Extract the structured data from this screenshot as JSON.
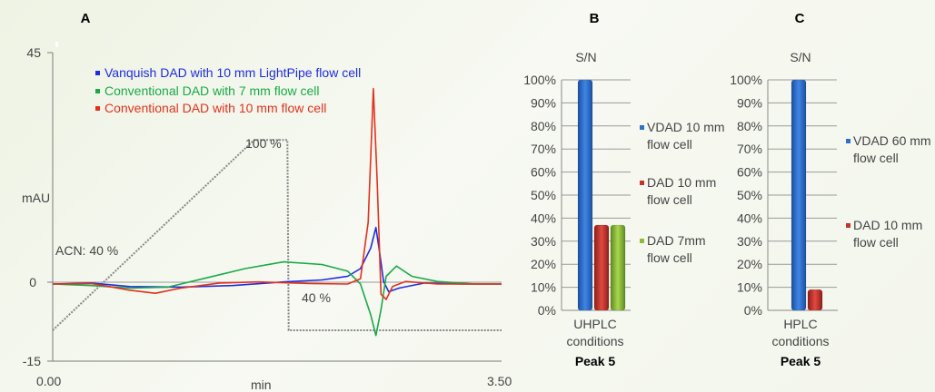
{
  "panels": {
    "a": "A",
    "b": "B",
    "c": "C"
  },
  "chart_data": [
    {
      "type": "line",
      "y_tick_labels": [
        "45",
        "0",
        "-15"
      ],
      "ylim": [
        -15,
        45
      ],
      "x_tick_labels": [
        "0.00",
        "3.50"
      ],
      "xlim": [
        0,
        3.5
      ],
      "xlabel": "min",
      "ylabel": "mAU",
      "legend_position": "top-left",
      "annotations": {
        "acn_start": "ACN: 40 %",
        "plateau": "100 %",
        "end": "40 %"
      },
      "gradient": {
        "name": "ACN gradient",
        "color": "#888888",
        "x": [
          0.0,
          1.57,
          1.83,
          1.84,
          3.5
        ],
        "y": [
          -9,
          28,
          28,
          -9,
          -9
        ]
      },
      "series": [
        {
          "name": "Vanquish DAD with 10 mm LightPipe flow cell",
          "color": "#1f2ce0",
          "x": [
            0,
            0.3,
            0.6,
            1.0,
            1.4,
            1.8,
            2.1,
            2.3,
            2.4,
            2.48,
            2.52,
            2.55,
            2.58,
            2.62,
            2.7,
            2.9,
            3.2,
            3.5
          ],
          "y": [
            0,
            0.2,
            -0.5,
            -0.6,
            -0.3,
            0.4,
            0.8,
            1.5,
            3,
            7,
            11,
            6,
            0.5,
            -1.5,
            -0.8,
            0.2,
            0,
            0
          ]
        },
        {
          "name": "Conventional DAD with 7 mm flow cell",
          "color": "#1aaa48",
          "x": [
            0,
            0.3,
            0.6,
            0.9,
            1.2,
            1.5,
            1.8,
            2.1,
            2.3,
            2.4,
            2.48,
            2.52,
            2.56,
            2.6,
            2.68,
            2.8,
            3.0,
            3.3,
            3.5
          ],
          "y": [
            0,
            -0.3,
            -0.8,
            -0.6,
            1.2,
            3.0,
            4.3,
            3.8,
            2.5,
            0,
            -6,
            -10,
            -5,
            1.5,
            3.5,
            1.5,
            0.5,
            0,
            0
          ]
        },
        {
          "name": "Conventional DAD with 10 mm flow cell",
          "color": "#e3311d",
          "x": [
            0,
            0.3,
            0.6,
            0.8,
            1.0,
            1.3,
            1.6,
            2.0,
            2.3,
            2.4,
            2.46,
            2.5,
            2.53,
            2.56,
            2.6,
            2.65,
            2.75,
            3.0,
            3.5
          ],
          "y": [
            0,
            0.1,
            -1.2,
            -1.8,
            -0.8,
            0.2,
            0.4,
            0.1,
            0,
            1,
            12,
            38,
            20,
            -2,
            -3,
            -0.5,
            0.5,
            0,
            0
          ]
        }
      ]
    },
    {
      "type": "bar",
      "title": "S/N",
      "y_tick_labels": [
        "100%",
        "90%",
        "80%",
        "70%",
        "60%",
        "50%",
        "40%",
        "30%",
        "20%",
        "10%",
        "0%"
      ],
      "ylim": [
        0,
        100
      ],
      "category_label": [
        "UHPLC",
        "conditions"
      ],
      "footer": "Peak 5",
      "series": [
        {
          "name": "VDAD 10 mm",
          "name_line2": "flow cell",
          "color": "#2f6fcc",
          "value": 100
        },
        {
          "name": "DAD 10 mm",
          "name_line2": "flow cell",
          "color": "#c8322d",
          "value": 37
        },
        {
          "name": "DAD 7mm",
          "name_line2": "flow cell",
          "color": "#8cbc3a",
          "value": 37
        }
      ]
    },
    {
      "type": "bar",
      "title": "S/N",
      "y_tick_labels": [
        "100%",
        "90%",
        "80%",
        "70%",
        "60%",
        "50%",
        "40%",
        "30%",
        "20%",
        "10%",
        "0%"
      ],
      "ylim": [
        0,
        100
      ],
      "category_label": [
        "HPLC",
        "conditions"
      ],
      "footer": "Peak 5",
      "series": [
        {
          "name": "VDAD 60 mm",
          "name_line2": "flow cell",
          "color": "#2f6fcc",
          "value": 100
        },
        {
          "name": "DAD 10 mm",
          "name_line2": "flow cell",
          "color": "#c8322d",
          "value": 9
        }
      ]
    }
  ]
}
